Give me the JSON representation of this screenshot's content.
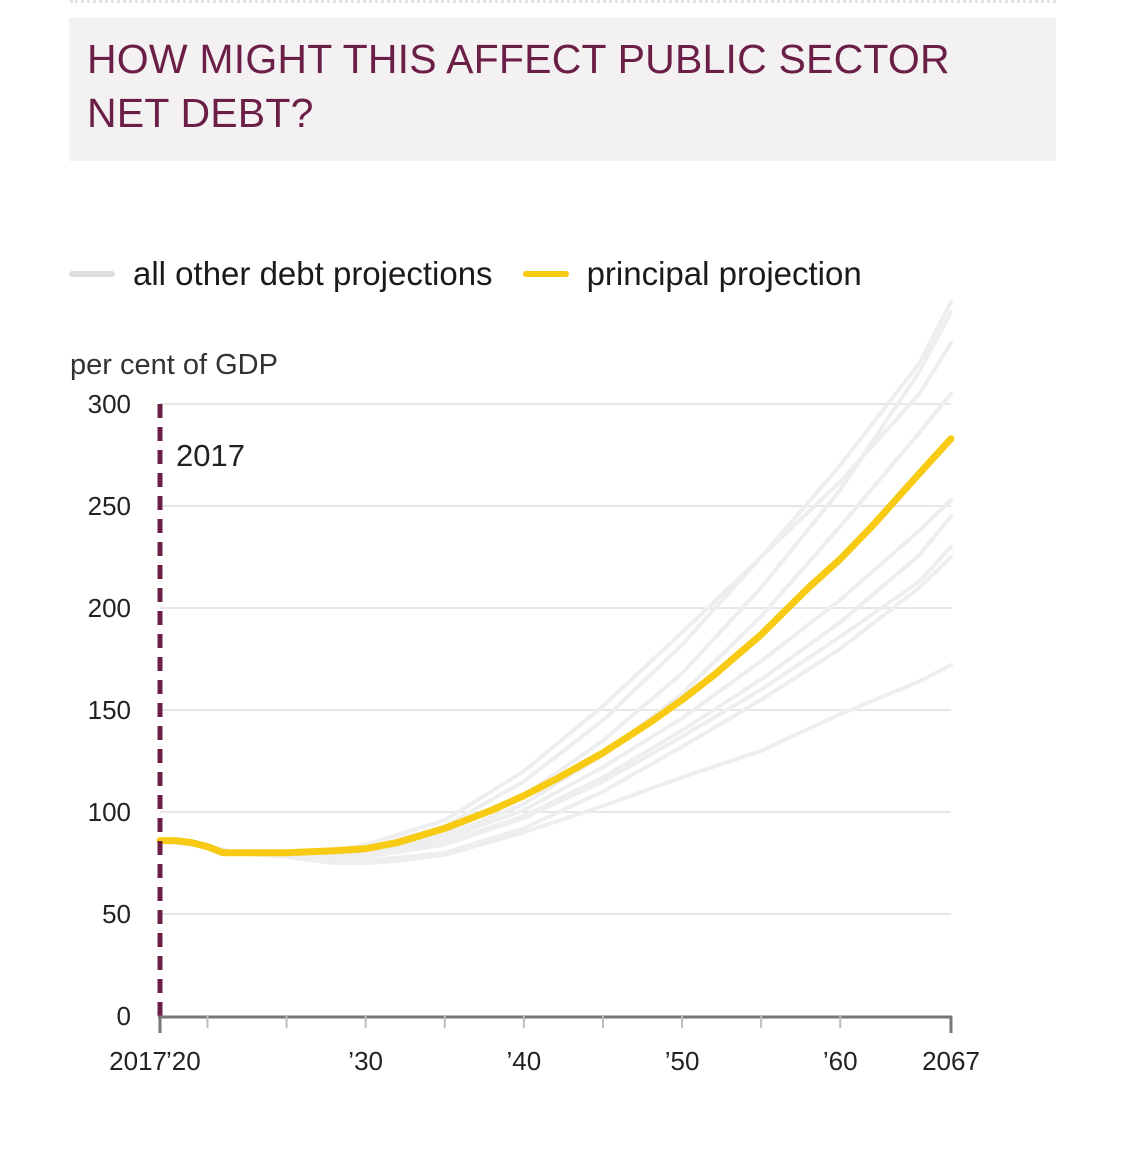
{
  "title": "HOW MIGHT THIS AFFECT PUBLIC SECTOR NET DEBT?",
  "colors": {
    "title": "#6b1f47",
    "other": "#eeeeee",
    "principal": "#f7cb14",
    "marker": "#6b1f47",
    "grid": "#e6e6e6"
  },
  "chart_data": {
    "type": "line",
    "title": "HOW MIGHT THIS AFFECT PUBLIC SECTOR NET DEBT?",
    "ylabel": "per cent of GDP",
    "xlabel": "",
    "xlim": [
      2017,
      2067
    ],
    "ylim": [
      0,
      300
    ],
    "grid": true,
    "legend": {
      "position": "top-left",
      "entries": [
        "all other debt projections",
        "principal projection"
      ]
    },
    "y_ticks": [
      {
        "value": 0,
        "label": "0"
      },
      {
        "value": 50,
        "label": "50"
      },
      {
        "value": 100,
        "label": "100"
      },
      {
        "value": 150,
        "label": "150"
      },
      {
        "value": 200,
        "label": "200"
      },
      {
        "value": 250,
        "label": "250"
      },
      {
        "value": 300,
        "label": "300"
      }
    ],
    "x_ticks": [
      {
        "value": 2017,
        "label": "2017"
      },
      {
        "value": 2020,
        "label": "’20"
      },
      {
        "value": 2030,
        "label": "’30"
      },
      {
        "value": 2040,
        "label": "’40"
      },
      {
        "value": 2050,
        "label": "’50"
      },
      {
        "value": 2060,
        "label": "’60"
      },
      {
        "value": 2067,
        "label": "2067"
      }
    ],
    "annotations": [
      {
        "x": 2017,
        "label": "2017",
        "type": "vertical-dashed-line"
      }
    ],
    "series": [
      {
        "name": "principal projection",
        "role": "principal",
        "x": [
          2017,
          2018,
          2019,
          2020,
          2021,
          2022,
          2025,
          2028,
          2030,
          2032,
          2035,
          2038,
          2040,
          2042,
          2045,
          2048,
          2050,
          2052,
          2055,
          2058,
          2060,
          2062,
          2065,
          2067
        ],
        "y": [
          86,
          86,
          85,
          83,
          80,
          80,
          80,
          81,
          82,
          85,
          92,
          101,
          108,
          116,
          129,
          144,
          155,
          167,
          187,
          210,
          224,
          240,
          266,
          283
        ]
      },
      {
        "name": "other 1",
        "role": "other",
        "x": [
          2017,
          2020,
          2022,
          2025,
          2028,
          2030,
          2035,
          2040,
          2045,
          2050,
          2055,
          2060,
          2065,
          2067
        ],
        "y": [
          86,
          83,
          80,
          79,
          79,
          80,
          90,
          108,
          135,
          168,
          210,
          258,
          316,
          345
        ]
      },
      {
        "name": "other 2",
        "role": "other",
        "x": [
          2017,
          2020,
          2022,
          2025,
          2028,
          2030,
          2035,
          2040,
          2045,
          2050,
          2055,
          2060,
          2065,
          2067
        ],
        "y": [
          86,
          83,
          80,
          79,
          80,
          82,
          93,
          115,
          145,
          182,
          225,
          270,
          320,
          350
        ]
      },
      {
        "name": "other 3",
        "role": "other",
        "x": [
          2017,
          2020,
          2022,
          2025,
          2028,
          2030,
          2035,
          2040,
          2045,
          2050,
          2055,
          2060,
          2065,
          2067
        ],
        "y": [
          86,
          83,
          80,
          79,
          79,
          80,
          88,
          104,
          128,
          158,
          196,
          240,
          286,
          305
        ]
      },
      {
        "name": "other 4",
        "role": "other",
        "x": [
          2017,
          2020,
          2022,
          2025,
          2028,
          2030,
          2035,
          2040,
          2045,
          2050,
          2055,
          2060,
          2065,
          2067
        ],
        "y": [
          86,
          83,
          80,
          79,
          81,
          84,
          96,
          120,
          152,
          188,
          225,
          262,
          305,
          330
        ]
      },
      {
        "name": "other 5",
        "role": "other",
        "x": [
          2017,
          2020,
          2022,
          2025,
          2028,
          2030,
          2035,
          2040,
          2045,
          2050,
          2055,
          2060,
          2065,
          2067
        ],
        "y": [
          86,
          83,
          80,
          79,
          79,
          80,
          87,
          101,
          122,
          146,
          174,
          204,
          238,
          253
        ]
      },
      {
        "name": "other 6",
        "role": "other",
        "x": [
          2017,
          2020,
          2022,
          2025,
          2028,
          2030,
          2035,
          2040,
          2045,
          2050,
          2055,
          2060,
          2065,
          2067
        ],
        "y": [
          86,
          83,
          80,
          79,
          78,
          79,
          85,
          98,
          117,
          140,
          165,
          193,
          226,
          245
        ]
      },
      {
        "name": "other 7",
        "role": "other",
        "x": [
          2017,
          2020,
          2022,
          2025,
          2028,
          2030,
          2035,
          2040,
          2045,
          2050,
          2055,
          2060,
          2065,
          2067
        ],
        "y": [
          86,
          83,
          80,
          79,
          78,
          78,
          84,
          97,
          115,
          137,
          160,
          186,
          213,
          230
        ]
      },
      {
        "name": "other 8",
        "role": "other",
        "x": [
          2017,
          2020,
          2022,
          2025,
          2028,
          2030,
          2035,
          2040,
          2045,
          2050,
          2055,
          2060,
          2065,
          2067
        ],
        "y": [
          86,
          83,
          80,
          78,
          76,
          76,
          80,
          92,
          110,
          132,
          155,
          180,
          210,
          225
        ]
      },
      {
        "name": "other 9",
        "role": "other",
        "x": [
          2017,
          2020,
          2022,
          2025,
          2028,
          2030,
          2032,
          2035,
          2040,
          2045,
          2050,
          2055,
          2060,
          2065,
          2067
        ],
        "y": [
          86,
          83,
          80,
          78,
          75,
          75,
          76,
          79,
          90,
          103,
          117,
          130,
          148,
          164,
          172
        ]
      }
    ]
  }
}
